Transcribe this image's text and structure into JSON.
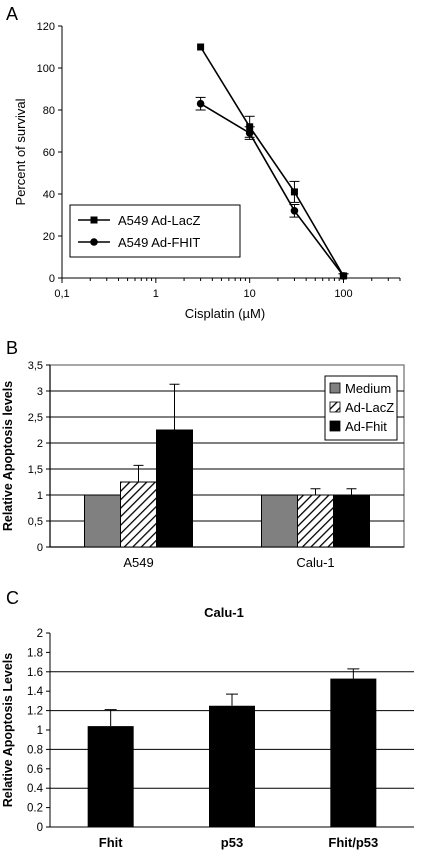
{
  "chart_data": [
    {
      "panel": "A",
      "type": "line",
      "xlabel": "Cisplatin (µM)",
      "ylabel": "Percent of survival",
      "xscale": "log",
      "xlim": [
        0.1,
        400
      ],
      "ylim": [
        0,
        120
      ],
      "x_ticks": [
        "0,1",
        "1",
        "10",
        "100"
      ],
      "y_ticks": [
        "0",
        "20",
        "40",
        "60",
        "80",
        "100",
        "120"
      ],
      "legend_position": "lower-left",
      "series": [
        {
          "name": "A549 Ad-LacZ",
          "marker": "square",
          "x": [
            3,
            10,
            30,
            100
          ],
          "y": [
            110,
            72,
            41,
            1
          ],
          "err": [
            0,
            5,
            5,
            1
          ]
        },
        {
          "name": "A549 Ad-FHIT",
          "marker": "circle",
          "x": [
            3,
            10,
            30,
            100
          ],
          "y": [
            83,
            69,
            32,
            1
          ],
          "err": [
            3,
            3,
            3,
            1
          ]
        }
      ]
    },
    {
      "panel": "B",
      "type": "bar",
      "ylabel": "Relative Apoptosis levels",
      "ylim": [
        0,
        3.5
      ],
      "y_ticks": [
        "0",
        "0,5",
        "1",
        "1,5",
        "2",
        "2,5",
        "3",
        "3,5"
      ],
      "categories": [
        "A549",
        "Calu-1"
      ],
      "grid": true,
      "legend_position": "top-right",
      "series": [
        {
          "name": "Medium",
          "style": "gray",
          "values": [
            1,
            1
          ],
          "err": [
            0,
            0
          ]
        },
        {
          "name": "Ad-LacZ",
          "style": "hatched",
          "values": [
            1.25,
            1
          ],
          "err": [
            0.32,
            0.12
          ]
        },
        {
          "name": "Ad-Fhit",
          "style": "black",
          "values": [
            2.25,
            1
          ],
          "err": [
            0.88,
            0.12
          ]
        }
      ]
    },
    {
      "panel": "C",
      "type": "bar",
      "title": "Calu-1",
      "ylabel": "Relative Apoptosis Levels",
      "ylim": [
        0,
        2
      ],
      "y_ticks": [
        "0",
        "0.2",
        "0.4",
        "0.6",
        "0.8",
        "1",
        "1.2",
        "1.4",
        "1.6",
        "1.8",
        "2"
      ],
      "categories": [
        "Fhit",
        "p53",
        "Fhit/p53"
      ],
      "grid": true,
      "values": [
        1.04,
        1.25,
        1.53
      ],
      "err": [
        0.17,
        0.12,
        0.1
      ]
    }
  ]
}
